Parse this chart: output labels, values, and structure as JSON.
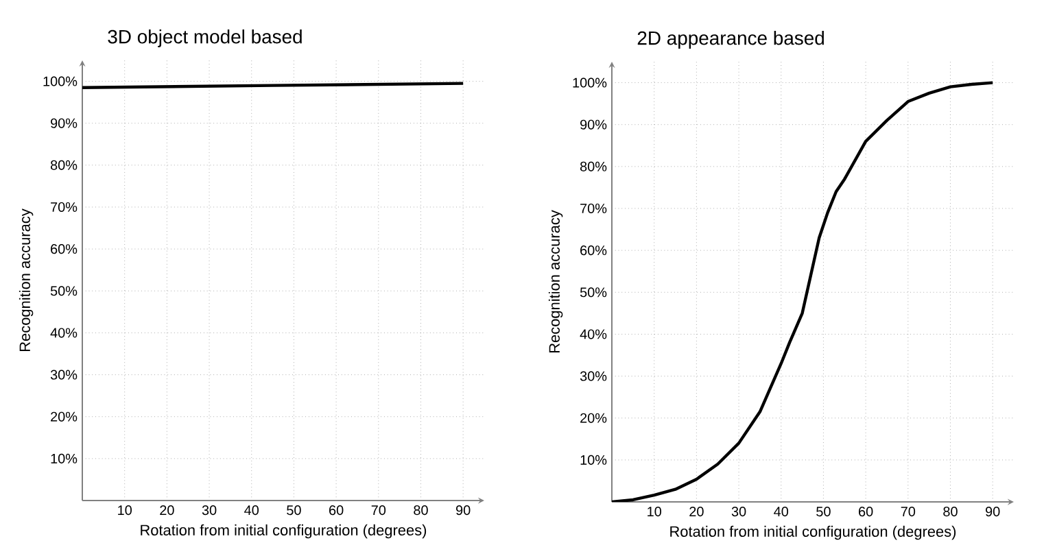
{
  "chart_data": [
    {
      "type": "line",
      "title": "3D object model based",
      "xlabel": "Rotation from initial configuration (degrees)",
      "ylabel": "Recognition accuracy",
      "x": [
        0,
        45,
        90
      ],
      "series": [
        {
          "color": "#000000",
          "values": [
            98.5,
            99,
            99.5
          ]
        }
      ],
      "xlim": [
        0,
        95
      ],
      "ylim": [
        0,
        105
      ],
      "xticks": [
        10,
        20,
        30,
        40,
        50,
        60,
        70,
        80,
        90
      ],
      "yticks": [
        {
          "value": 10,
          "label": "10%"
        },
        {
          "value": 20,
          "label": "20%"
        },
        {
          "value": 30,
          "label": "30%"
        },
        {
          "value": 40,
          "label": "40%"
        },
        {
          "value": 50,
          "label": "50%"
        },
        {
          "value": 60,
          "label": "60%"
        },
        {
          "value": 70,
          "label": "70%"
        },
        {
          "value": 80,
          "label": "80%"
        },
        {
          "value": 90,
          "label": "90%"
        },
        {
          "value": 100,
          "label": "100%"
        }
      ],
      "grid": true
    },
    {
      "type": "line",
      "title": "2D appearance based",
      "xlabel": "Rotation from initial configuration (degrees)",
      "ylabel": "Recognition accuracy",
      "x": [
        0,
        5,
        10,
        15,
        20,
        25,
        30,
        35,
        40,
        42,
        45,
        47,
        49,
        51,
        53,
        55,
        60,
        65,
        70,
        75,
        80,
        85,
        90
      ],
      "series": [
        {
          "color": "#000000",
          "values": [
            0,
            0.5,
            1.6,
            3,
            5.4,
            9,
            14,
            21.5,
            33,
            38,
            45,
            54,
            63,
            69,
            74,
            77,
            86,
            91,
            95.5,
            97.5,
            99,
            99.6,
            100
          ]
        }
      ],
      "xlim": [
        0,
        95
      ],
      "ylim": [
        0,
        105
      ],
      "xticks": [
        10,
        20,
        30,
        40,
        50,
        60,
        70,
        80,
        90
      ],
      "yticks": [
        {
          "value": 10,
          "label": "10%"
        },
        {
          "value": 20,
          "label": "20%"
        },
        {
          "value": 30,
          "label": "30%"
        },
        {
          "value": 40,
          "label": "40%"
        },
        {
          "value": 50,
          "label": "50%"
        },
        {
          "value": 60,
          "label": "60%"
        },
        {
          "value": 70,
          "label": "70%"
        },
        {
          "value": 80,
          "label": "80%"
        },
        {
          "value": 90,
          "label": "90%"
        },
        {
          "value": 100,
          "label": "100%"
        }
      ],
      "grid": true
    }
  ]
}
